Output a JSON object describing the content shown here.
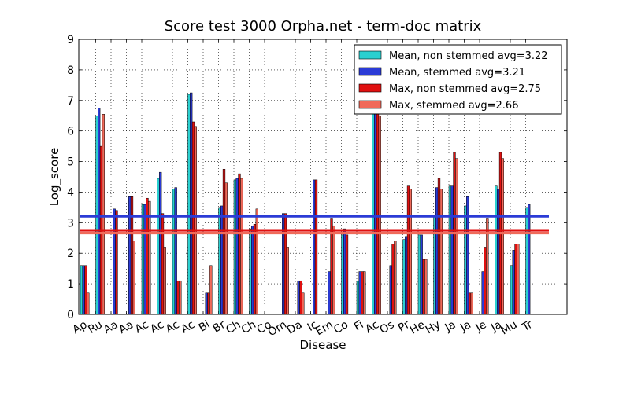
{
  "chart_data": {
    "type": "bar",
    "title": "Score test 3000 Orpha.net - term-doc matrix",
    "xlabel": "Disease",
    "ylabel": "Log_score",
    "ylim": [
      0,
      9
    ],
    "yticks": [
      0,
      1,
      2,
      3,
      4,
      5,
      6,
      7,
      8,
      9
    ],
    "grid": true,
    "legend_position": "top-right",
    "categories": [
      "Ap",
      "Ru",
      "Aa",
      "Aa",
      "Ac",
      "Ac",
      "Ac",
      "Ac",
      "Bi",
      "Br",
      "Ch",
      "Ch",
      "Co",
      "Om",
      "Da",
      "Ic",
      "Em",
      "Co",
      "Fi",
      "Ac",
      "Os",
      "Pr",
      "He",
      "Hy",
      "Ja",
      "Ja",
      "Je",
      "Ja",
      "Mu",
      "Tr"
    ],
    "series": [
      {
        "name": "Mean, non stemmed avg=3.22",
        "color": "#2ad0d0",
        "values": [
          1.6,
          6.5,
          0,
          0,
          3.6,
          4.45,
          4.1,
          7.2,
          0,
          3.5,
          4.4,
          2.8,
          0,
          0,
          0,
          0,
          0,
          2.6,
          1.1,
          6.6,
          0,
          2.45,
          2.6,
          3.2,
          4.2,
          3.55,
          0,
          4.2,
          1.6,
          3.5
        ]
      },
      {
        "name": "Mean, stemmed avg=3.21",
        "color": "#2b3bd6",
        "values": [
          1.6,
          6.75,
          3.45,
          3.85,
          3.6,
          4.65,
          4.15,
          7.25,
          0.7,
          3.55,
          4.45,
          2.9,
          0,
          3.3,
          1.1,
          4.4,
          1.4,
          2.8,
          1.4,
          6.65,
          1.6,
          2.55,
          2.6,
          4.15,
          4.2,
          3.85,
          1.4,
          4.1,
          2.1,
          3.6
        ]
      },
      {
        "name": "Max, non stemmed avg=2.75",
        "color": "#e01010",
        "values": [
          1.6,
          5.5,
          3.4,
          3.85,
          3.8,
          3.3,
          1.1,
          6.3,
          0.7,
          4.75,
          4.6,
          2.95,
          0,
          3.3,
          1.1,
          4.4,
          3.15,
          2.6,
          1.4,
          6.6,
          2.3,
          4.2,
          1.8,
          4.45,
          5.3,
          0.7,
          2.2,
          5.3,
          2.3,
          0
        ]
      },
      {
        "name": "Max, stemmed  avg=2.66",
        "color": "#f06a5a",
        "values": [
          0.7,
          6.55,
          0,
          2.4,
          3.7,
          2.2,
          1.1,
          6.15,
          1.6,
          4.3,
          4.45,
          3.45,
          0,
          2.2,
          0.7,
          0,
          2.9,
          0,
          1.4,
          6.5,
          2.4,
          4.1,
          1.8,
          4.1,
          5.1,
          0.7,
          3.15,
          5.1,
          2.3,
          0
        ]
      }
    ],
    "reference_lines": [
      {
        "value": 3.22,
        "color": "#2ad0d0"
      },
      {
        "value": 3.21,
        "color": "#2b3bd6"
      },
      {
        "value": 2.75,
        "color": "#e01010"
      },
      {
        "value": 2.66,
        "color": "#f06a5a"
      }
    ]
  }
}
